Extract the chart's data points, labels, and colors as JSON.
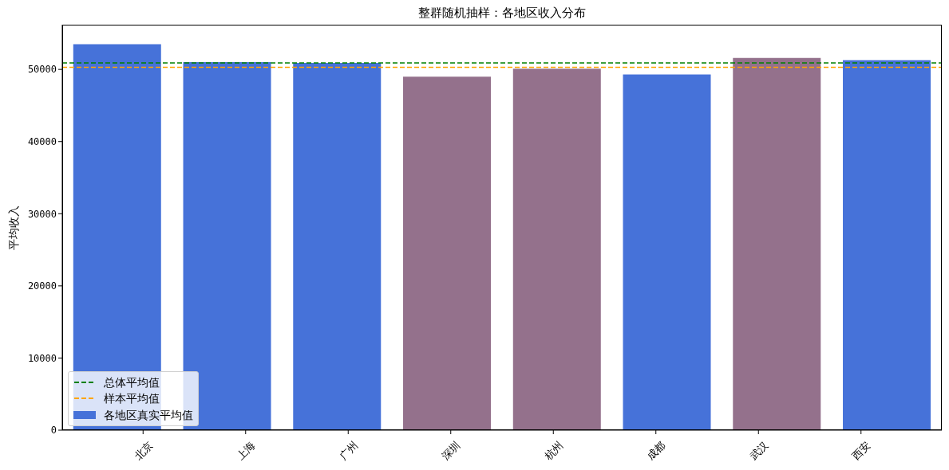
{
  "chart_data": {
    "type": "bar",
    "title": "整群随机抽样：各地区收入分布",
    "ylabel": "平均收入",
    "categories": [
      "北京",
      "上海",
      "广州",
      "深圳",
      "杭州",
      "成都",
      "武汉",
      "西安"
    ],
    "series": [
      {
        "name": "各地区真实平均值",
        "color": "#4672d9",
        "colors": [
          "#4672d9",
          "#4672d9",
          "#4672d9",
          "#94718c",
          "#94718c",
          "#4672d9",
          "#94718c",
          "#4672d9"
        ],
        "values": [
          53500,
          51000,
          50900,
          49000,
          50100,
          49300,
          51600,
          51300
        ]
      }
    ],
    "ylim": [
      0,
      56200
    ],
    "yticks": [
      0,
      10000,
      20000,
      30000,
      40000,
      50000
    ],
    "ref_lines": [
      {
        "axis": "y",
        "value": 50900,
        "label": "总体平均值",
        "color": "#008000",
        "line_style": "dashed"
      },
      {
        "axis": "y",
        "value": 50300,
        "label": "样本平均值",
        "color": "#ffa500",
        "line_style": "dashed"
      }
    ],
    "legend": "bottom left"
  }
}
